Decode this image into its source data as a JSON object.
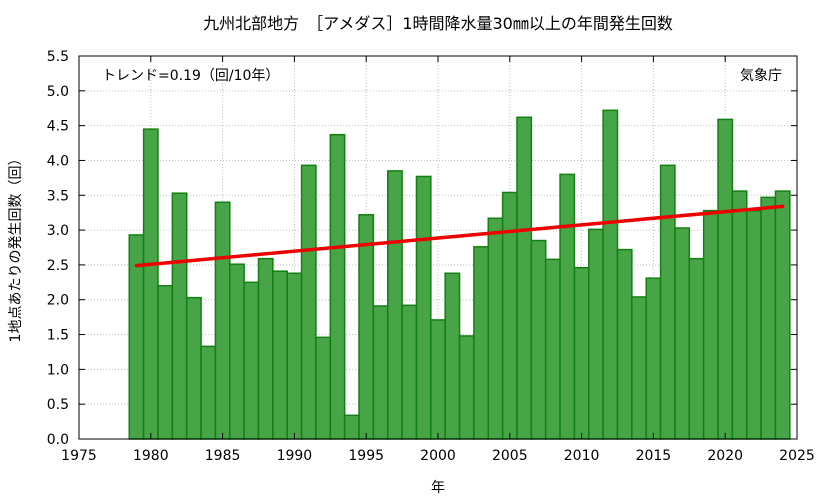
{
  "chart_data": {
    "type": "bar",
    "title": "九州北部地方　［アメダス］1時間降水量30㎜以上の年間発生回数",
    "xlabel": "年",
    "ylabel": "1地点あたりの発生回数（回）",
    "annotation_trend": "トレンド=0.19（回/10年）",
    "annotation_source": "気象庁",
    "xlim": [
      1975,
      2025
    ],
    "ylim": [
      0,
      5.5
    ],
    "x_ticks": [
      1975,
      1980,
      1985,
      1990,
      1995,
      2000,
      2005,
      2010,
      2015,
      2020,
      2025
    ],
    "y_ticks": [
      0.0,
      0.5,
      1.0,
      1.5,
      2.0,
      2.5,
      3.0,
      3.5,
      4.0,
      4.5,
      5.0,
      5.5
    ],
    "grid": true,
    "years": [
      1979,
      1980,
      1981,
      1982,
      1983,
      1984,
      1985,
      1986,
      1987,
      1988,
      1989,
      1990,
      1991,
      1992,
      1993,
      1994,
      1995,
      1996,
      1997,
      1998,
      1999,
      2000,
      2001,
      2002,
      2003,
      2004,
      2005,
      2006,
      2007,
      2008,
      2009,
      2010,
      2011,
      2012,
      2013,
      2014,
      2015,
      2016,
      2017,
      2018,
      2019,
      2020,
      2021,
      2022,
      2023,
      2024
    ],
    "values": [
      2.93,
      4.45,
      2.2,
      3.53,
      2.03,
      1.33,
      3.4,
      2.51,
      2.25,
      2.59,
      2.41,
      2.38,
      3.93,
      1.46,
      4.37,
      0.34,
      3.22,
      1.91,
      3.85,
      1.92,
      3.77,
      1.71,
      2.38,
      1.48,
      2.76,
      3.17,
      3.54,
      4.62,
      2.85,
      2.58,
      3.8,
      2.46,
      3.01,
      4.72,
      2.72,
      2.04,
      2.31,
      3.93,
      3.03,
      2.59,
      3.28,
      4.59,
      3.56,
      3.28,
      3.47,
      3.56
    ],
    "trend_line": {
      "x": [
        1979,
        2024
      ],
      "y": [
        2.49,
        3.34
      ],
      "color": "#ee0000"
    },
    "bar_fill": "#47a447",
    "bar_stroke": "#138013"
  }
}
